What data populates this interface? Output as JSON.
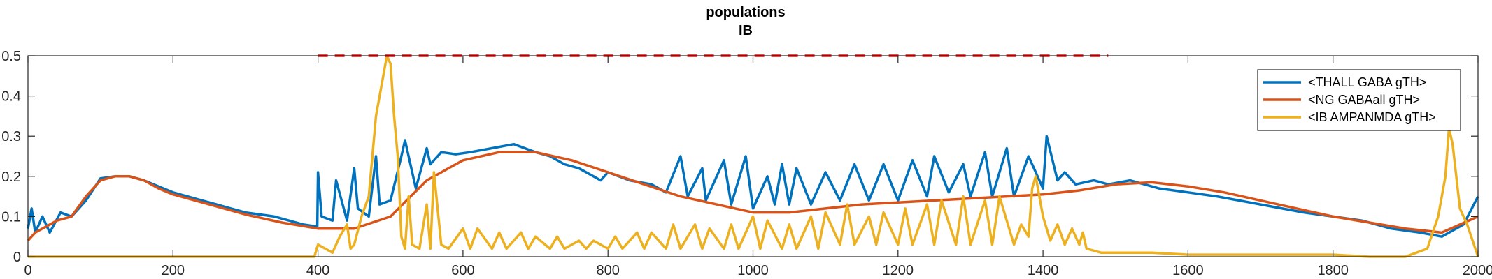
{
  "chart_data": {
    "type": "line",
    "title": "populations",
    "subtitle": "IB",
    "xlabel": "",
    "ylabel": "",
    "xlim": [
      0,
      2000
    ],
    "ylim": [
      0,
      0.5
    ],
    "xticks": [
      0,
      200,
      400,
      600,
      800,
      1000,
      1200,
      1400,
      1600,
      1800,
      2000
    ],
    "xtick_labels": [
      "0",
      "200",
      "400",
      "600",
      "800",
      "1000",
      "1200",
      "1400",
      "1600",
      "1800",
      "2000"
    ],
    "yticks": [
      0,
      0.1,
      0.2,
      0.3,
      0.4,
      0.5
    ],
    "ytick_labels": [
      "0",
      "0.1",
      "0.2",
      "0.3",
      "0.4",
      "0.5"
    ],
    "grid": false,
    "legend_position": "top-right",
    "threshold": {
      "y": 0.5,
      "x_start": 400,
      "x_end": 1490,
      "color": "#FF0000",
      "style": "dashed"
    },
    "series": [
      {
        "name": "<THALL GABA gTH>",
        "color": "#0072BD",
        "x": [
          0,
          5,
          10,
          20,
          30,
          45,
          60,
          80,
          100,
          120,
          140,
          160,
          180,
          200,
          220,
          240,
          260,
          280,
          300,
          320,
          340,
          360,
          380,
          399,
          400,
          405,
          420,
          425,
          440,
          450,
          455,
          470,
          480,
          485,
          500,
          515,
          520,
          535,
          550,
          555,
          570,
          590,
          610,
          640,
          670,
          700,
          720,
          740,
          760,
          780,
          790,
          800,
          830,
          860,
          880,
          900,
          910,
          930,
          935,
          960,
          970,
          990,
          1000,
          1020,
          1030,
          1040,
          1050,
          1060,
          1080,
          1100,
          1120,
          1140,
          1160,
          1180,
          1200,
          1220,
          1240,
          1250,
          1270,
          1290,
          1300,
          1320,
          1330,
          1350,
          1360,
          1380,
          1400,
          1405,
          1420,
          1430,
          1445,
          1470,
          1490,
          1520,
          1560,
          1600,
          1640,
          1700,
          1760,
          1800,
          1840,
          1880,
          1920,
          1950,
          1980,
          2000
        ],
        "y": [
          0.07,
          0.12,
          0.06,
          0.1,
          0.06,
          0.11,
          0.1,
          0.14,
          0.195,
          0.2,
          0.2,
          0.19,
          0.175,
          0.16,
          0.15,
          0.14,
          0.13,
          0.12,
          0.11,
          0.105,
          0.1,
          0.09,
          0.08,
          0.075,
          0.21,
          0.1,
          0.09,
          0.19,
          0.09,
          0.22,
          0.12,
          0.1,
          0.25,
          0.13,
          0.14,
          0.25,
          0.29,
          0.17,
          0.27,
          0.23,
          0.26,
          0.255,
          0.26,
          0.27,
          0.28,
          0.26,
          0.25,
          0.23,
          0.22,
          0.2,
          0.19,
          0.21,
          0.19,
          0.18,
          0.16,
          0.25,
          0.15,
          0.22,
          0.14,
          0.24,
          0.13,
          0.25,
          0.12,
          0.2,
          0.13,
          0.23,
          0.13,
          0.22,
          0.13,
          0.21,
          0.14,
          0.23,
          0.14,
          0.23,
          0.14,
          0.24,
          0.15,
          0.25,
          0.16,
          0.23,
          0.15,
          0.26,
          0.15,
          0.27,
          0.15,
          0.25,
          0.17,
          0.3,
          0.19,
          0.21,
          0.18,
          0.19,
          0.18,
          0.19,
          0.17,
          0.16,
          0.15,
          0.13,
          0.11,
          0.1,
          0.09,
          0.07,
          0.06,
          0.05,
          0.08,
          0.15
        ]
      },
      {
        "name": "<NG GABAall gTH>",
        "color": "#D95319",
        "x": [
          0,
          10,
          20,
          40,
          60,
          80,
          100,
          120,
          140,
          160,
          180,
          200,
          250,
          300,
          350,
          400,
          450,
          500,
          550,
          600,
          650,
          700,
          750,
          800,
          850,
          900,
          950,
          1000,
          1050,
          1100,
          1150,
          1200,
          1250,
          1300,
          1350,
          1400,
          1450,
          1500,
          1550,
          1600,
          1650,
          1700,
          1750,
          1800,
          1850,
          1900,
          1950,
          2000
        ],
        "y": [
          0.04,
          0.06,
          0.07,
          0.09,
          0.1,
          0.15,
          0.19,
          0.2,
          0.2,
          0.19,
          0.17,
          0.155,
          0.13,
          0.105,
          0.085,
          0.07,
          0.07,
          0.1,
          0.19,
          0.24,
          0.26,
          0.26,
          0.24,
          0.21,
          0.18,
          0.15,
          0.13,
          0.11,
          0.11,
          0.12,
          0.13,
          0.135,
          0.14,
          0.145,
          0.15,
          0.155,
          0.165,
          0.18,
          0.185,
          0.175,
          0.16,
          0.14,
          0.12,
          0.1,
          0.085,
          0.07,
          0.06,
          0.1
        ]
      },
      {
        "name": "<IB AMPANMDA gTH>",
        "color": "#EDB120",
        "x": [
          0,
          395,
          400,
          410,
          420,
          430,
          440,
          445,
          450,
          460,
          470,
          480,
          485,
          490,
          495,
          500,
          505,
          510,
          515,
          520,
          525,
          530,
          540,
          550,
          555,
          560,
          570,
          580,
          600,
          610,
          620,
          640,
          650,
          660,
          680,
          690,
          700,
          720,
          730,
          740,
          760,
          770,
          780,
          800,
          810,
          820,
          840,
          850,
          860,
          880,
          890,
          900,
          920,
          930,
          940,
          960,
          970,
          980,
          1000,
          1010,
          1020,
          1040,
          1050,
          1060,
          1080,
          1090,
          1100,
          1120,
          1130,
          1140,
          1160,
          1170,
          1180,
          1200,
          1210,
          1220,
          1240,
          1250,
          1260,
          1280,
          1290,
          1300,
          1320,
          1330,
          1340,
          1360,
          1370,
          1380,
          1385,
          1390,
          1395,
          1400,
          1410,
          1420,
          1430,
          1440,
          1450,
          1455,
          1460,
          1480,
          1500,
          1550,
          1600,
          1700,
          1800,
          1850,
          1900,
          1930,
          1945,
          1955,
          1960,
          1965,
          1975,
          1985,
          2000
        ],
        "y": [
          0,
          0,
          0.03,
          0.02,
          0.01,
          0.05,
          0.08,
          0.02,
          0.03,
          0.1,
          0.15,
          0.35,
          0.4,
          0.45,
          0.5,
          0.48,
          0.35,
          0.25,
          0.05,
          0.02,
          0.15,
          0.03,
          0.02,
          0.13,
          0.02,
          0.21,
          0.03,
          0.02,
          0.07,
          0.02,
          0.07,
          0.02,
          0.06,
          0.02,
          0.06,
          0.02,
          0.05,
          0.02,
          0.05,
          0.02,
          0.04,
          0.02,
          0.04,
          0.02,
          0.05,
          0.02,
          0.06,
          0.02,
          0.06,
          0.02,
          0.08,
          0.02,
          0.08,
          0.02,
          0.07,
          0.02,
          0.08,
          0.02,
          0.1,
          0.02,
          0.09,
          0.02,
          0.08,
          0.02,
          0.1,
          0.02,
          0.11,
          0.03,
          0.13,
          0.03,
          0.1,
          0.03,
          0.11,
          0.03,
          0.12,
          0.03,
          0.13,
          0.03,
          0.14,
          0.03,
          0.15,
          0.03,
          0.14,
          0.03,
          0.15,
          0.03,
          0.08,
          0.05,
          0.17,
          0.2,
          0.15,
          0.1,
          0.04,
          0.08,
          0.03,
          0.07,
          0.03,
          0.06,
          0.02,
          0.01,
          0.01,
          0.01,
          0.005,
          0.005,
          0.005,
          0.0,
          0.0,
          0.02,
          0.1,
          0.2,
          0.32,
          0.28,
          0.12,
          0.08,
          0.0
        ]
      }
    ]
  }
}
